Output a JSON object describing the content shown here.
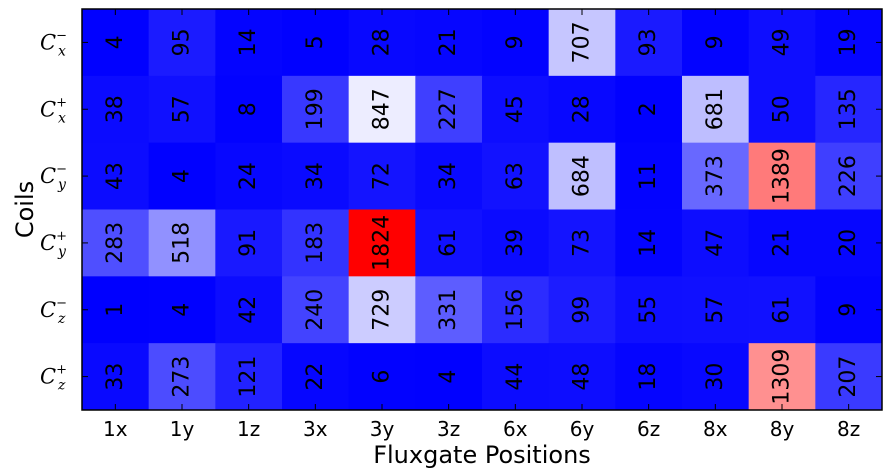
{
  "chart_data": {
    "type": "heatmap",
    "xlabel": "Fluxgate Positions",
    "ylabel": "Coils",
    "x_categories": [
      "1x",
      "1y",
      "1z",
      "3x",
      "3y",
      "3z",
      "6x",
      "6y",
      "6z",
      "8x",
      "8y",
      "8z"
    ],
    "y_categories": [
      {
        "base": "C",
        "sub": "x",
        "sup": "−"
      },
      {
        "base": "C",
        "sub": "x",
        "sup": "+"
      },
      {
        "base": "C",
        "sub": "y",
        "sup": "−"
      },
      {
        "base": "C",
        "sub": "y",
        "sup": "+"
      },
      {
        "base": "C",
        "sub": "z",
        "sup": "−"
      },
      {
        "base": "C",
        "sub": "z",
        "sup": "+"
      }
    ],
    "values": [
      [
        4,
        95,
        14,
        5,
        28,
        21,
        9,
        707,
        93,
        9,
        49,
        19
      ],
      [
        38,
        57,
        8,
        199,
        847,
        227,
        45,
        28,
        2,
        681,
        50,
        135
      ],
      [
        43,
        4,
        24,
        34,
        72,
        34,
        63,
        684,
        11,
        373,
        1389,
        226
      ],
      [
        283,
        518,
        91,
        183,
        1824,
        61,
        39,
        73,
        14,
        47,
        21,
        20
      ],
      [
        1,
        4,
        42,
        240,
        729,
        331,
        156,
        99,
        55,
        57,
        61,
        9
      ],
      [
        33,
        273,
        121,
        22,
        6,
        4,
        44,
        48,
        18,
        30,
        1309,
        207
      ]
    ],
    "colormap": {
      "low": "#0000ff",
      "mid": "#ffffff",
      "high": "#ff0000"
    },
    "value_range": [
      0,
      1824
    ],
    "cell_label_rotation": "vertical"
  }
}
